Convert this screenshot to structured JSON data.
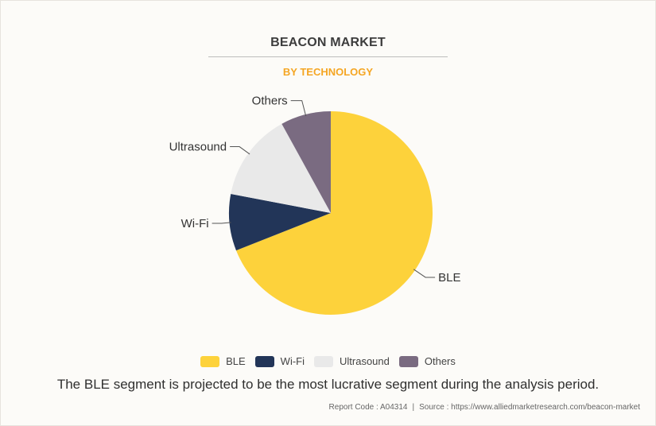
{
  "header": {
    "title": "BEACON MARKET",
    "subtitle": "BY TECHNOLOGY"
  },
  "chart_data": {
    "type": "pie",
    "title": "BEACON MARKET",
    "subtitle": "BY TECHNOLOGY",
    "categories": [
      "BLE",
      "Wi-Fi",
      "Ultrasound",
      "Others"
    ],
    "values": [
      69,
      9,
      14,
      8
    ],
    "colors": [
      "#fdd23b",
      "#223558",
      "#e9e9e9",
      "#7a6b81"
    ],
    "start": "12 o'clock",
    "direction": "clockwise",
    "legend_position": "bottom"
  },
  "legend": {
    "items": [
      {
        "label": "BLE",
        "color": "#fdd23b"
      },
      {
        "label": "Wi-Fi",
        "color": "#223558"
      },
      {
        "label": "Ultrasound",
        "color": "#e9e9e9"
      },
      {
        "label": "Others",
        "color": "#7a6b81"
      }
    ]
  },
  "caption": "The BLE segment is projected to be the most lucrative segment during the analysis period.",
  "footer": {
    "report_code": "Report Code : A04314",
    "separator": "|",
    "source": "Source : https://www.alliedmarketresearch.com/beacon-market"
  }
}
